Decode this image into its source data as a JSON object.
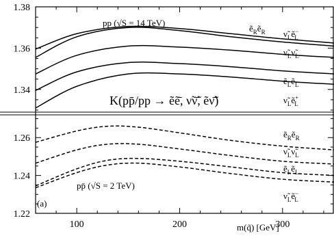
{
  "chart_data": {
    "type": "line",
    "xlabel": "m(q̃) [GeV]",
    "x_ticks": [
      100,
      200,
      300
    ],
    "xlim": [
      60,
      350
    ],
    "main_label": "K(pp̄/pp → ẽẽ̄, ν̃ν̄̃, ẽν̃̄)",
    "panel_label": "(a)",
    "panels": [
      {
        "name": "upper",
        "annotation": "pp (√S = 14 TeV)",
        "ylim": [
          1.329,
          1.38
        ],
        "y_ticks": [
          "1.38",
          "1.36",
          "1.34"
        ],
        "y_tick_values": [
          1.38,
          1.36,
          1.34
        ],
        "line_style": "solid",
        "series": [
          {
            "label": "ẽRẽR",
            "label_main": "ẽ",
            "sub1": "R",
            "label_second": "ẽ",
            "sub2": "R",
            "sup2": "",
            "x": [
              60,
              100,
              150,
              200,
              250,
              300,
              350
            ],
            "y": [
              1.3595,
              1.367,
              1.3705,
              1.3695,
              1.367,
              1.3645,
              1.3625
            ]
          },
          {
            "label": "ν̃Lẽ−L",
            "label_main": "ν̃",
            "sub1": "L",
            "label_second": "ẽ",
            "sub2": "L",
            "sup2": "−",
            "x": [
              60,
              100,
              150,
              200,
              250,
              300,
              350
            ],
            "y": [
              1.3555,
              1.3655,
              1.37,
              1.3685,
              1.3655,
              1.363,
              1.361
            ]
          },
          {
            "label": "ν̃Lν̃L",
            "label_main": "ν̃",
            "sub1": "L",
            "label_second": "ν̃",
            "sub2": "L",
            "sup2": "",
            "x": [
              60,
              100,
              150,
              200,
              250,
              300,
              350
            ],
            "y": [
              1.3475,
              1.3565,
              1.361,
              1.3605,
              1.359,
              1.357,
              1.3555
            ]
          },
          {
            "label": "ẽLẽL",
            "label_main": "ẽ",
            "sub1": "L",
            "label_second": "ẽ",
            "sub2": "L",
            "sup2": "",
            "x": [
              60,
              100,
              150,
              200,
              250,
              300,
              350
            ],
            "y": [
              1.3395,
              1.3485,
              1.353,
              1.3525,
              1.351,
              1.349,
              1.3475
            ]
          },
          {
            "label": "ν̃Lẽ+L",
            "label_main": "ν̃",
            "sub1": "L",
            "label_second": "ẽ",
            "sub2": "L",
            "sup2": "+",
            "x": [
              60,
              100,
              150,
              200,
              250,
              300,
              350
            ],
            "y": [
              1.331,
              1.3415,
              1.3475,
              1.3475,
              1.346,
              1.344,
              1.3425
            ]
          }
        ]
      },
      {
        "name": "lower",
        "annotation": "pp̄ (√S = 2 TeV)",
        "ylim": [
          1.22,
          1.272
        ],
        "y_ticks": [
          "1.26",
          "1.24",
          "1.22"
        ],
        "y_tick_values": [
          1.26,
          1.24,
          1.22
        ],
        "line_style": "dashed",
        "series": [
          {
            "label": "ẽRẽR",
            "label_main": "ẽ",
            "sub1": "R",
            "label_second": "ẽ",
            "sub2": "R",
            "sup2": "",
            "x": [
              60,
              100,
              130,
              160,
              200,
              250,
              300,
              350
            ],
            "y": [
              1.2575,
              1.2635,
              1.266,
              1.2655,
              1.2625,
              1.2585,
              1.2555,
              1.2535
            ]
          },
          {
            "label": "ν̃Lν̃L",
            "label_main": "ν̃",
            "sub1": "L",
            "label_second": "ν̃",
            "sub2": "L",
            "sup2": "",
            "x": [
              60,
              100,
              130,
              160,
              200,
              250,
              300,
              350
            ],
            "y": [
              1.2465,
              1.2535,
              1.2565,
              1.2565,
              1.254,
              1.2505,
              1.2475,
              1.246
            ]
          },
          {
            "label": "ẽLẽL",
            "label_main": "ẽ",
            "sub1": "L",
            "label_second": "ẽ",
            "sub2": "L",
            "sup2": "",
            "x": [
              60,
              100,
              130,
              160,
              200,
              250,
              300,
              350
            ],
            "y": [
              1.2345,
              1.2435,
              1.248,
              1.249,
              1.2475,
              1.2445,
              1.2415,
              1.24
            ]
          },
          {
            "label": "ν̃Lẽ−L",
            "label_main": "ν̃",
            "sub1": "L",
            "label_second": "ẽ",
            "sub2": "L",
            "sup2": "−",
            "x": [
              60,
              100,
              130,
              160,
              200,
              250,
              300,
              350
            ],
            "y": [
              1.2335,
              1.2415,
              1.2455,
              1.2465,
              1.2445,
              1.241,
              1.238,
              1.2365
            ]
          }
        ]
      }
    ]
  }
}
